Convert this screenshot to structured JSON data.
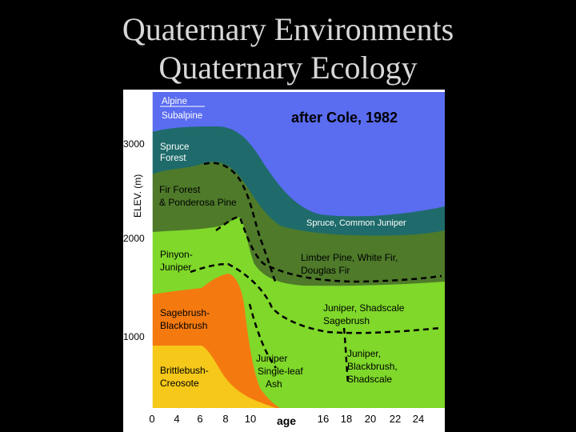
{
  "title_line1": "Quaternary Environments",
  "title_line2": "Quaternary Ecology",
  "figure": {
    "citation": "after Cole, 1982",
    "y_axis_label": "ELEV. (m)",
    "x_axis_label": "age",
    "y_ticks": [
      "3000",
      "2000",
      "1000"
    ],
    "x_ticks": [
      "0",
      "4",
      "6",
      "8",
      "10",
      "16",
      "18",
      "20",
      "22",
      "24"
    ],
    "left_zones": {
      "alpine": "Alpine",
      "subalpine": "Subalpine",
      "spruce_1": "Spruce",
      "spruce_2": "Forest",
      "fir_1": "Fir Forest",
      "fir_2": "& Ponderosa Pine",
      "pinyon_1": "Pinyon-",
      "pinyon_2": "Juniper",
      "sage_1": "Sagebrush-",
      "sage_2": "Blackbrush",
      "brittle_1": "Brittlebush-",
      "brittle_2": "Creosote"
    },
    "right_zones": {
      "spruce_juniper": "Spruce, Common Juniper",
      "limber_1": "Limber Pine, White Fir,",
      "limber_2": "Douglas Fir",
      "shad_1": "Juniper, Shadscale",
      "shad_2": "Sagebrush",
      "jun_ash_1": "Juniper",
      "jun_ash_2": "Single-leaf",
      "jun_ash_3": "Ash",
      "jun_black_1": "Juniper,",
      "jun_black_2": "Blackbrush,",
      "jun_black_3": "Shadscale"
    },
    "colors": {
      "alpine": "#5a6cf0",
      "spruce": "#1f6b6b",
      "fir": "#4e7a2a",
      "pinyon": "#7fd82a",
      "sagebrush": "#f47a10",
      "brittlebush": "#f5c81a"
    }
  }
}
